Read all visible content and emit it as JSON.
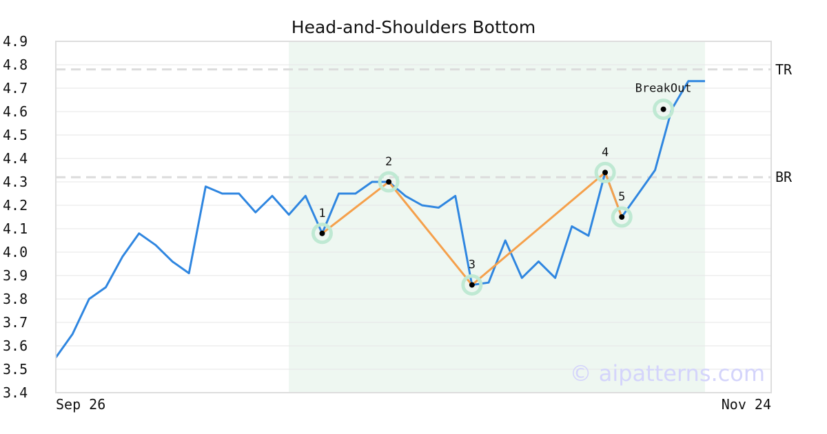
{
  "chart_data": {
    "type": "line",
    "title": "Head-and-Shoulders Bottom",
    "x_tick_labels": [
      "Sep 26",
      "Nov 24"
    ],
    "y_ticks": [
      "3.4",
      "3.5",
      "3.6",
      "3.7",
      "3.8",
      "3.9",
      "4.0",
      "4.1",
      "4.2",
      "4.3",
      "4.4",
      "4.5",
      "4.6",
      "4.7",
      "4.8",
      "4.9"
    ],
    "ylim": [
      3.4,
      4.9
    ],
    "grid": "horizontal",
    "series": [
      {
        "color": "#2f86e0",
        "values": [
          3.55,
          3.65,
          3.8,
          3.85,
          3.98,
          4.08,
          4.03,
          3.96,
          3.91,
          4.28,
          4.25,
          4.25,
          4.17,
          4.24,
          4.16,
          4.24,
          4.08,
          4.25,
          4.25,
          4.3,
          4.3,
          4.24,
          4.2,
          4.19,
          4.24,
          3.86,
          3.87,
          4.05,
          3.89,
          3.96,
          3.89,
          4.11,
          4.07,
          4.34,
          4.15,
          4.25,
          4.35,
          4.61,
          4.73,
          4.73
        ]
      }
    ],
    "pattern_region": {
      "start_index": 14,
      "end_index": 39,
      "color": "#eef7f1"
    },
    "pattern_line": {
      "color": "#f5a04b",
      "points": [
        {
          "index": 16,
          "value": 4.08,
          "label": "1"
        },
        {
          "index": 20,
          "value": 4.3,
          "label": "2"
        },
        {
          "index": 25,
          "value": 3.86,
          "label": "3"
        },
        {
          "index": 33,
          "value": 4.34,
          "label": "4"
        },
        {
          "index": 34,
          "value": 4.15,
          "label": "5"
        }
      ]
    },
    "breakout": {
      "index": 36.5,
      "value": 4.61,
      "label": "BreakOut"
    },
    "reference_lines": [
      {
        "value": 4.78,
        "label": "TR"
      },
      {
        "value": 4.32,
        "label": "BR"
      }
    ],
    "marker_halo_color": "#bfe9d3",
    "watermark": "© aipatterns.com"
  }
}
